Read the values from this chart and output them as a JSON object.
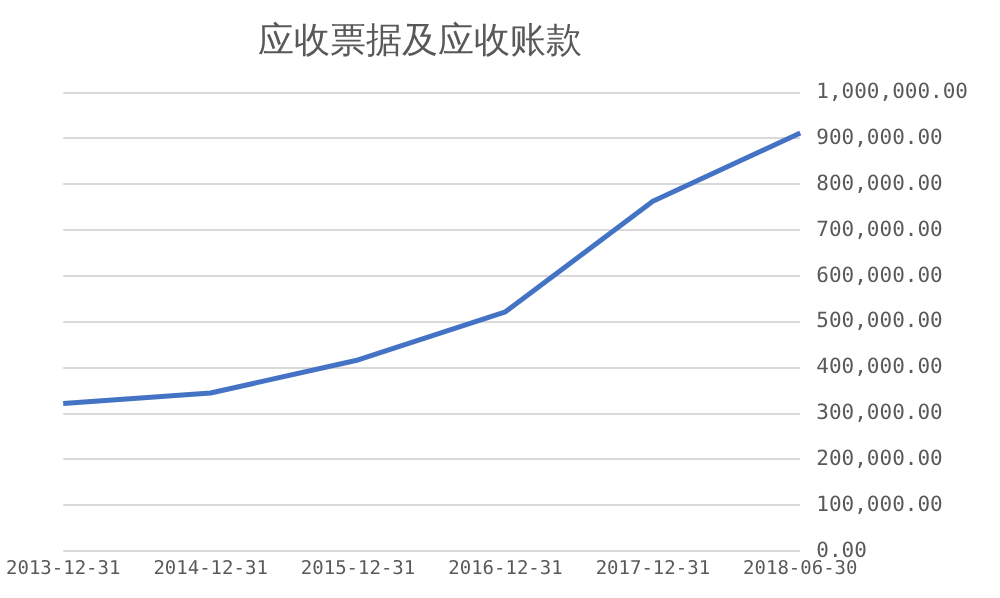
{
  "chart_data": {
    "type": "line",
    "title": "应收票据及应收账款",
    "categories": [
      "2013-12-31",
      "2014-12-31",
      "2015-12-31",
      "2016-12-31",
      "2017-12-31",
      "2018-06-30"
    ],
    "series": [
      {
        "color": "#4472c4",
        "values": [
          322000,
          345000,
          417000,
          522000,
          763000,
          912000
        ]
      }
    ],
    "ylim": [
      0,
      1000000
    ],
    "yticks": [
      {
        "value": 0,
        "label": "0.00"
      },
      {
        "value": 100000,
        "label": "100,000.00"
      },
      {
        "value": 200000,
        "label": "200,000.00"
      },
      {
        "value": 300000,
        "label": "300,000.00"
      },
      {
        "value": 400000,
        "label": "400,000.00"
      },
      {
        "value": 500000,
        "label": "500,000.00"
      },
      {
        "value": 600000,
        "label": "600,000.00"
      },
      {
        "value": 700000,
        "label": "700,000.00"
      },
      {
        "value": 800000,
        "label": "800,000.00"
      },
      {
        "value": 900000,
        "label": "900,000.00"
      },
      {
        "value": 1000000,
        "label": "1,000,000.00"
      }
    ],
    "grid": "y",
    "legend": false,
    "marker": "none",
    "line_style": "solid"
  }
}
